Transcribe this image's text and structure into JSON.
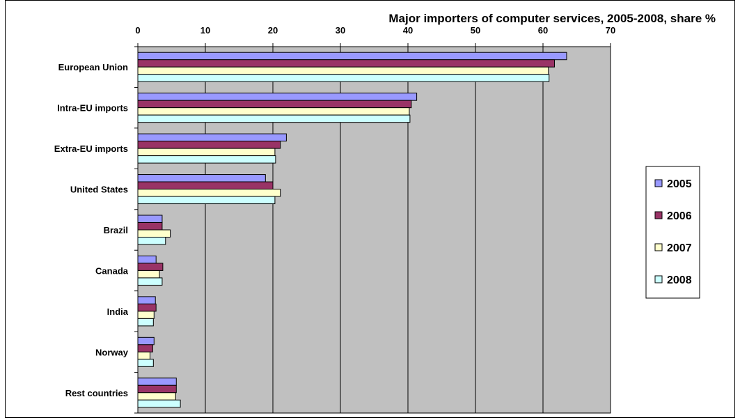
{
  "chart_data": {
    "type": "bar",
    "orientation": "horizontal",
    "title": "Major importers of computer services, 2005-2008, share %",
    "xlabel": "",
    "ylabel": "",
    "xlim": [
      0,
      70
    ],
    "xticks": [
      0,
      10,
      20,
      30,
      40,
      50,
      60,
      70
    ],
    "grid": true,
    "legend_position": "right",
    "categories": [
      "European Union",
      "Intra-EU imports",
      "Extra-EU imports",
      "United States",
      "Brazil",
      "Canada",
      "India",
      "Norway",
      "Rest countries"
    ],
    "series": [
      {
        "name": "2005",
        "color": "#9999ff",
        "values": [
          63.5,
          41.3,
          22.0,
          18.9,
          3.6,
          2.7,
          2.6,
          2.4,
          5.7
        ]
      },
      {
        "name": "2006",
        "color": "#993366",
        "values": [
          61.7,
          40.5,
          21.1,
          20.0,
          3.6,
          3.7,
          2.7,
          2.2,
          5.7
        ]
      },
      {
        "name": "2007",
        "color": "#ffffcc",
        "values": [
          60.8,
          40.2,
          20.3,
          21.1,
          4.8,
          3.2,
          2.4,
          1.8,
          5.6
        ]
      },
      {
        "name": "2008",
        "color": "#ccffff",
        "values": [
          60.9,
          40.3,
          20.4,
          20.3,
          4.1,
          3.6,
          2.3,
          2.3,
          6.3
        ]
      }
    ]
  }
}
